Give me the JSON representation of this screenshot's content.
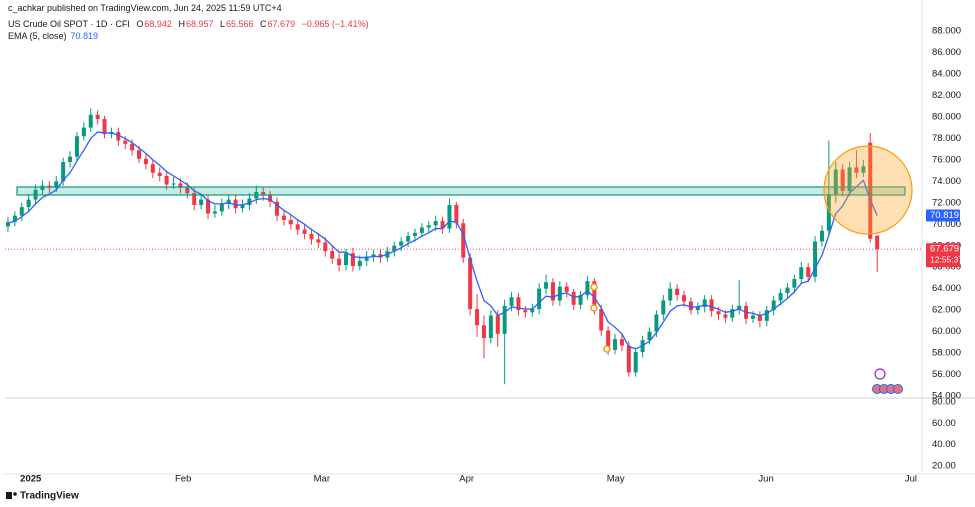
{
  "header": {
    "publisher": "c_achkar published on TradingView.com, Jun 24, 2025 11:59 UTC+4"
  },
  "chart_data": {
    "type": "candlestick",
    "title": "US Crude Oil SPOT · 1D · CFI",
    "ohlc_labels": [
      "O",
      "H",
      "L",
      "C"
    ],
    "change": "−0.965 (−1.41%)",
    "countdown": "12:55:37",
    "x": [
      0,
      1,
      2,
      3,
      4,
      5,
      6,
      7,
      8,
      9,
      10,
      11,
      12,
      13,
      14,
      15,
      16,
      17,
      18,
      19,
      20,
      21,
      22,
      23,
      24,
      25,
      26,
      27,
      28,
      29,
      30,
      31,
      32,
      33,
      34,
      35,
      36,
      37,
      38,
      39,
      40,
      41,
      42,
      43,
      44,
      45,
      46,
      47,
      48,
      49,
      50,
      51,
      52,
      53,
      54,
      55,
      56,
      57,
      58,
      59,
      60,
      61,
      62,
      63,
      64,
      65,
      66,
      67,
      68,
      69,
      70,
      71,
      72,
      73,
      74,
      75,
      76,
      77,
      78,
      79,
      80,
      81,
      82,
      83,
      84,
      85,
      86,
      87,
      88,
      89,
      90,
      91,
      92,
      93,
      94,
      95,
      96,
      97,
      98,
      99,
      100,
      101,
      102,
      103,
      104,
      105,
      106,
      107,
      108,
      109,
      110,
      111,
      112,
      113,
      114,
      115,
      116,
      117,
      118,
      119,
      120,
      121,
      122,
      123,
      124,
      125,
      126
    ],
    "open": [
      69.8,
      70.2,
      70.8,
      71.6,
      72.3,
      73.2,
      73.6,
      73.4,
      74.0,
      75.8,
      76.3,
      78.2,
      79.0,
      80.2,
      79.8,
      78.4,
      78.6,
      77.8,
      77.5,
      76.9,
      76.1,
      75.6,
      74.8,
      74.5,
      73.7,
      73.8,
      73.4,
      72.9,
      71.8,
      72.3,
      71.0,
      71.2,
      71.9,
      72.3,
      71.5,
      71.8,
      72.4,
      73.0,
      72.7,
      72.1,
      70.8,
      70.4,
      70.0,
      69.5,
      69.1,
      68.6,
      68.3,
      67.5,
      66.8,
      66.2,
      67.3,
      66.1,
      66.6,
      67.0,
      67.2,
      66.9,
      67.5,
      68.0,
      68.4,
      68.9,
      69.2,
      69.7,
      69.9,
      70.3,
      69.6,
      71.8,
      70.1,
      66.9,
      62.1,
      60.6,
      59.4,
      61.5,
      59.8,
      62.4,
      63.2,
      62.0,
      61.8,
      62.1,
      64.0,
      64.6,
      62.9,
      64.2,
      63.7,
      62.5,
      63.4,
      64.7,
      62.1,
      60.1,
      58.3,
      59.3,
      58.7,
      56.2,
      58.1,
      59.2,
      60.0,
      61.6,
      62.9,
      64.0,
      63.4,
      62.8,
      62.0,
      62.3,
      63.0,
      61.9,
      61.6,
      61.3,
      62.1,
      62.4,
      61.2,
      61.5,
      61.0,
      62.0,
      62.9,
      63.6,
      64.1,
      64.9,
      66.0,
      65.1,
      68.4,
      69.4,
      72.8,
      75.1,
      73.1,
      75.3,
      74.8,
      77.6,
      68.942
    ],
    "high": [
      70.7,
      71.2,
      72.0,
      72.8,
      73.7,
      74.1,
      74.0,
      74.5,
      76.2,
      76.8,
      78.6,
      79.5,
      80.8,
      80.6,
      80.1,
      79.0,
      79.0,
      78.2,
      77.9,
      77.3,
      76.6,
      76.0,
      75.3,
      75.0,
      74.4,
      74.3,
      73.9,
      73.4,
      72.8,
      72.7,
      71.8,
      72.4,
      72.8,
      72.7,
      72.3,
      72.9,
      73.6,
      73.4,
      73.1,
      72.5,
      71.3,
      70.9,
      70.4,
      70.0,
      69.6,
      69.1,
      68.8,
      68.0,
      67.3,
      67.7,
      67.8,
      67.1,
      67.5,
      67.6,
      67.7,
      67.9,
      68.4,
      68.8,
      69.3,
      69.6,
      70.1,
      70.3,
      70.8,
      70.7,
      72.4,
      72.1,
      70.5,
      67.3,
      63.5,
      61.5,
      62.0,
      62.0,
      63.0,
      63.7,
      63.6,
      62.4,
      62.6,
      64.5,
      65.3,
      65.0,
      64.7,
      64.6,
      64.0,
      63.8,
      65.2,
      65.0,
      62.5,
      60.5,
      59.8,
      59.7,
      59.1,
      58.5,
      59.6,
      60.4,
      62.0,
      63.4,
      64.6,
      64.4,
      63.8,
      63.2,
      62.7,
      63.4,
      63.4,
      62.3,
      62.0,
      62.5,
      64.8,
      62.8,
      61.9,
      61.9,
      62.4,
      63.3,
      64.0,
      64.5,
      65.3,
      66.5,
      66.4,
      68.9,
      69.9,
      77.8,
      75.8,
      75.6,
      75.8,
      76.9,
      76.0,
      78.5,
      68.957
    ],
    "low": [
      69.3,
      69.8,
      70.3,
      71.2,
      71.8,
      72.8,
      72.9,
      73.0,
      73.6,
      75.3,
      75.9,
      77.8,
      78.6,
      79.3,
      78.0,
      78.0,
      77.3,
      77.0,
      76.4,
      75.7,
      75.1,
      74.3,
      74.0,
      73.2,
      73.3,
      72.9,
      72.4,
      71.3,
      71.4,
      70.5,
      70.6,
      70.8,
      71.4,
      71.0,
      71.1,
      71.3,
      71.9,
      72.2,
      71.6,
      70.3,
      69.9,
      69.5,
      69.0,
      68.6,
      68.1,
      67.8,
      67.0,
      66.3,
      65.6,
      65.7,
      65.6,
      65.7,
      66.1,
      66.5,
      66.4,
      66.5,
      67.0,
      67.5,
      67.9,
      68.4,
      68.8,
      69.2,
      69.4,
      69.1,
      69.2,
      69.6,
      66.4,
      61.5,
      59.5,
      57.5,
      58.9,
      58.6,
      55.1,
      61.9,
      61.5,
      61.3,
      61.4,
      61.6,
      63.5,
      62.4,
      62.4,
      63.2,
      62.0,
      62.1,
      63.0,
      61.6,
      59.6,
      57.8,
      57.9,
      58.2,
      55.8,
      55.8,
      57.6,
      58.8,
      59.5,
      61.1,
      62.4,
      62.9,
      62.3,
      61.6,
      61.6,
      61.8,
      61.4,
      61.1,
      60.8,
      60.9,
      61.6,
      60.7,
      60.8,
      60.4,
      60.5,
      61.5,
      62.4,
      63.1,
      63.6,
      64.4,
      64.6,
      64.6,
      67.9,
      69.0,
      72.0,
      72.6,
      72.6,
      74.3,
      74.4,
      68.3,
      65.566
    ],
    "close": [
      70.2,
      70.8,
      71.6,
      72.3,
      73.2,
      73.6,
      73.4,
      74.0,
      75.8,
      76.3,
      78.2,
      79.0,
      80.2,
      79.8,
      78.4,
      78.6,
      77.8,
      77.5,
      76.9,
      76.1,
      75.6,
      74.8,
      74.5,
      73.7,
      73.8,
      73.4,
      72.9,
      71.8,
      72.3,
      71.0,
      71.2,
      71.9,
      72.3,
      71.5,
      71.8,
      72.4,
      73.0,
      72.7,
      72.1,
      70.8,
      70.4,
      70.0,
      69.5,
      69.1,
      68.6,
      68.3,
      67.5,
      66.8,
      66.2,
      67.3,
      66.1,
      66.6,
      67.0,
      67.2,
      66.9,
      67.5,
      68.0,
      68.4,
      68.9,
      69.2,
      69.7,
      69.9,
      70.3,
      69.6,
      71.8,
      70.1,
      66.9,
      62.1,
      60.6,
      59.4,
      61.5,
      59.8,
      62.4,
      63.2,
      62.0,
      61.8,
      62.1,
      64.0,
      64.6,
      62.9,
      64.2,
      63.7,
      62.5,
      63.4,
      64.7,
      62.1,
      60.1,
      58.3,
      59.3,
      58.7,
      56.2,
      58.1,
      59.2,
      60.0,
      61.6,
      62.9,
      64.0,
      63.4,
      62.8,
      62.0,
      62.3,
      63.0,
      61.9,
      61.6,
      61.3,
      62.1,
      62.4,
      61.2,
      61.5,
      61.0,
      62.0,
      62.9,
      63.6,
      64.1,
      64.9,
      66.0,
      65.1,
      68.4,
      69.4,
      72.8,
      75.1,
      73.1,
      75.3,
      74.8,
      75.4,
      68.644,
      67.679
    ],
    "up_color": "#089981",
    "down_color": "#f23645",
    "series": [
      {
        "name": "EMA (5, close)",
        "color": "#2962ff",
        "values": [
          70.1,
          70.3,
          70.7,
          71.2,
          71.9,
          72.5,
          72.8,
          73.2,
          74.1,
          74.8,
          75.9,
          76.9,
          78.0,
          78.6,
          78.5,
          78.5,
          78.3,
          78.0,
          77.6,
          77.1,
          76.6,
          76.0,
          75.5,
          74.9,
          74.5,
          74.1,
          73.7,
          73.1,
          72.8,
          72.2,
          71.9,
          71.9,
          72.0,
          71.8,
          71.8,
          72.0,
          72.3,
          72.4,
          72.3,
          71.8,
          71.3,
          70.9,
          70.4,
          70.0,
          69.5,
          69.1,
          68.6,
          68.0,
          67.4,
          67.4,
          67.0,
          66.9,
          66.9,
          67.0,
          67.0,
          67.2,
          67.5,
          67.8,
          68.2,
          68.5,
          68.9,
          69.2,
          69.6,
          69.6,
          70.3,
          70.2,
          69.1,
          66.8,
          64.7,
          62.9,
          62.4,
          61.5,
          61.8,
          62.3,
          62.2,
          62.1,
          62.1,
          62.7,
          63.3,
          63.2,
          63.5,
          63.6,
          63.2,
          63.3,
          63.8,
          63.2,
          62.2,
          60.9,
          60.4,
          59.8,
          58.6,
          58.4,
          58.7,
          59.1,
          59.9,
          60.9,
          61.9,
          62.4,
          62.5,
          62.3,
          62.3,
          62.5,
          62.3,
          62.1,
          61.8,
          61.9,
          62.1,
          61.8,
          61.7,
          61.5,
          61.7,
          62.1,
          62.6,
          63.1,
          63.7,
          64.5,
          64.7,
          65.9,
          67.1,
          69.0,
          71.0,
          71.7,
          72.9,
          73.5,
          74.1,
          72.3,
          70.819
        ]
      }
    ],
    "xlim": [
      -0.43,
      132.5
    ],
    "xticks": [
      {
        "value": 3.3,
        "label": "2025"
      },
      {
        "value": 25.4,
        "label": "Feb"
      },
      {
        "value": 45.5,
        "label": "Mar"
      },
      {
        "value": 66.5,
        "label": "Apr"
      },
      {
        "value": 88.1,
        "label": "May"
      },
      {
        "value": 109.9,
        "label": "Jun"
      },
      {
        "value": 130.9,
        "label": "Jul"
      }
    ],
    "ylim": [
      53.91,
      89.96
    ],
    "yticks": [
      {
        "value": 54,
        "label": "54.000"
      },
      {
        "value": 56,
        "label": "56.000"
      },
      {
        "value": 58,
        "label": "58.000"
      },
      {
        "value": 60,
        "label": "60.000"
      },
      {
        "value": 62,
        "label": "62.000"
      },
      {
        "value": 64,
        "label": "64.000"
      },
      {
        "value": 66,
        "label": "66.000"
      },
      {
        "value": 68,
        "label": "68.000"
      },
      {
        "value": 70,
        "label": "70.000"
      },
      {
        "value": 72,
        "label": "72.000"
      },
      {
        "value": 74,
        "label": "74.000"
      },
      {
        "value": 76,
        "label": "76.000"
      },
      {
        "value": 78,
        "label": "78.000"
      },
      {
        "value": 80,
        "label": "80.000"
      },
      {
        "value": 82,
        "label": "82.000"
      },
      {
        "value": 84,
        "label": "84.000"
      },
      {
        "value": 86,
        "label": "86.000"
      },
      {
        "value": 88,
        "label": "88.000"
      }
    ],
    "grid": false,
    "lower_pane": {
      "ylim": [
        12.5,
        83.75
      ],
      "yticks": [
        {
          "value": 20,
          "label": "20.00"
        },
        {
          "value": 40,
          "label": "40.00"
        },
        {
          "value": 60,
          "label": "60.00"
        },
        {
          "value": 80,
          "label": "80.00"
        }
      ]
    }
  },
  "footer": {
    "brand": "TradingView"
  }
}
